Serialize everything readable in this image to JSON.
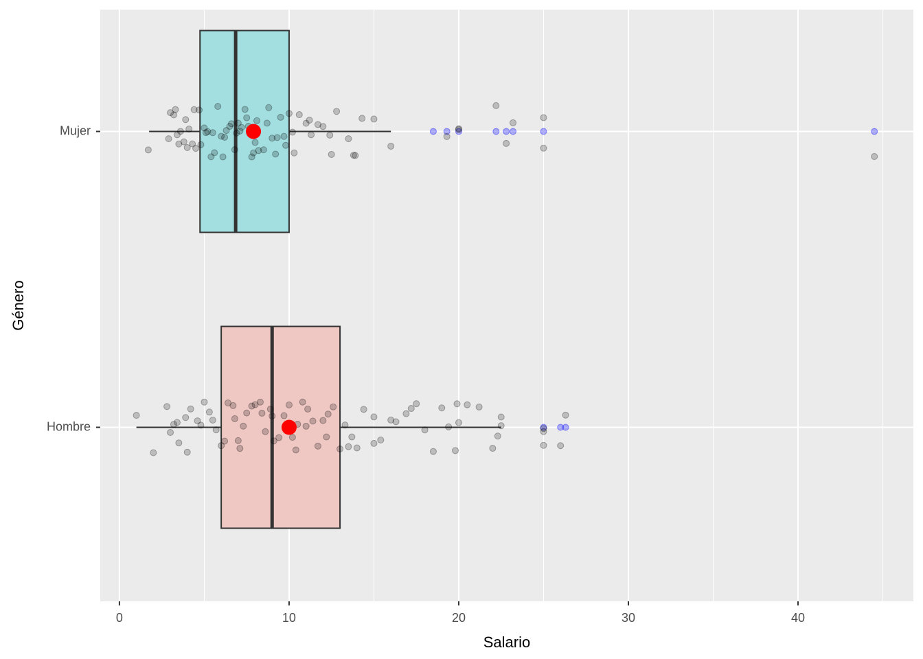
{
  "chart_data": {
    "type": "boxplot",
    "orientation": "horizontal",
    "x_label": "Salario",
    "y_label": "Género",
    "xlim": [
      -1.13,
      46.8
    ],
    "xticks": [
      0,
      10,
      20,
      30,
      40
    ],
    "x_minor_ticks": [
      5,
      15,
      25,
      35,
      45
    ],
    "grid": true,
    "categories": [
      "Mujer",
      "Hombre"
    ],
    "mean_color": "#ff0000",
    "outlier_color": "#0000ff",
    "point_color": "#000000",
    "boxes": [
      {
        "color": "#a3dfe0",
        "whisker_low": 1.75,
        "q1": 4.75,
        "median": 6.85,
        "q3": 10.0,
        "whisker_high": 16.0,
        "mean": 7.9,
        "outliers": [
          18.5,
          19.3,
          20,
          22.2,
          22.8,
          23.2,
          25,
          44.5
        ],
        "points": [
          3.2,
          3.5,
          3.4,
          4.1,
          3.9,
          4.5,
          4.8,
          5.2,
          5.5,
          5.1,
          5.8,
          6.0,
          6.2,
          6.5,
          6.8,
          7.0,
          7.2,
          7.5,
          7.8,
          8.0,
          8.2,
          8.5,
          8.8,
          9.0,
          9.2,
          9.5,
          9.8,
          10.0,
          10.3,
          10.6,
          11.0,
          11.3,
          11.7,
          12.0,
          12.4,
          12.8,
          13.5,
          13.9,
          14.3,
          15.0,
          16.0,
          1.7,
          2.9,
          3.3,
          3.6,
          4.0,
          4.3,
          4.7,
          5.0,
          5.4,
          5.6,
          6.3,
          6.6,
          7.1,
          7.4,
          7.9,
          8.1,
          8.7,
          9.3,
          9.7,
          10.2,
          11.2,
          12.5,
          13.8,
          3.0,
          3.8,
          4.4,
          6.1,
          6.9,
          7.6,
          19.3,
          20,
          20,
          22.2,
          22.8,
          23.2,
          25,
          25,
          44.5
        ]
      },
      {
        "color": "#efc7c3",
        "whisker_low": 1.0,
        "q1": 6.0,
        "median": 9.0,
        "q3": 13.0,
        "whisker_high": 22.5,
        "mean": 10.0,
        "outliers": [
          25,
          26,
          26.3
        ],
        "points": [
          1.0,
          2.0,
          2.8,
          3.2,
          3.5,
          3.4,
          3.9,
          4.2,
          4.6,
          4.8,
          5.0,
          5.3,
          5.7,
          6.0,
          6.2,
          6.4,
          6.7,
          7.0,
          7.3,
          7.5,
          7.8,
          8.0,
          8.3,
          8.6,
          8.9,
          9.1,
          9.4,
          9.7,
          10.0,
          10.2,
          10.5,
          10.8,
          11.1,
          11.4,
          11.7,
          12.0,
          12.3,
          12.6,
          13.0,
          13.3,
          13.7,
          14.0,
          14.4,
          15.0,
          15.0,
          15.4,
          16.0,
          16.3,
          16.9,
          17.5,
          18.0,
          18.5,
          19.0,
          19.4,
          19.8,
          20.0,
          20.5,
          21.2,
          22.0,
          22.3,
          22.5,
          22.5,
          25,
          25,
          25,
          26,
          26.3,
          3.0,
          4.0,
          5.5,
          6.8,
          7.1,
          8.4,
          9.0,
          10.4,
          11.0,
          12.2,
          13.5,
          17.2,
          19.9
        ]
      }
    ]
  }
}
